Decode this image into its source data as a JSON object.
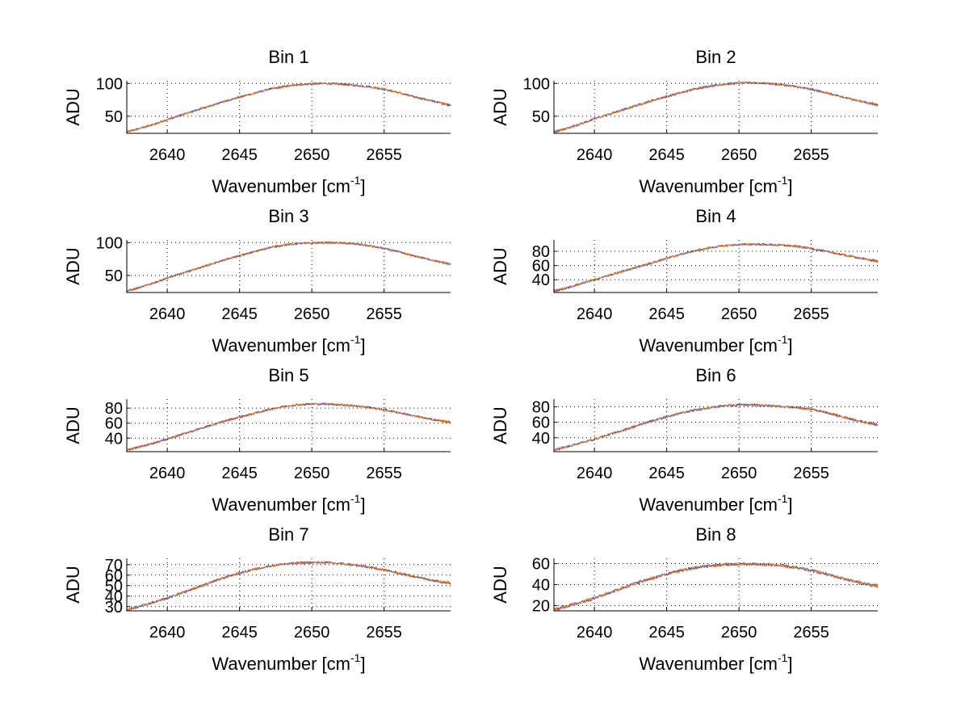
{
  "chart_data": [
    {
      "type": "line",
      "title": "Bin 1",
      "xlabel": "Wavenumber",
      "xlabel_unit_base": "cm",
      "xlabel_unit_exp": "-1",
      "ylabel": "ADU",
      "xlim": [
        2637.2,
        2659.6
      ],
      "ylim": [
        24,
        104
      ],
      "xticks": [
        2640,
        2645,
        2650,
        2655
      ],
      "yticks": [
        50,
        100
      ],
      "series": [
        {
          "name": "blue",
          "color": "#2040c0",
          "noise": 1.4,
          "x": [
            2637.2,
            2638,
            2639,
            2640,
            2641,
            2642,
            2643,
            2644,
            2645,
            2646,
            2647,
            2648,
            2649,
            2650,
            2651,
            2652,
            2653,
            2654,
            2655,
            2656,
            2657,
            2658,
            2659,
            2659.6
          ],
          "values": [
            26,
            31,
            37,
            45,
            52,
            59,
            66,
            73,
            79,
            85,
            91,
            95,
            98,
            99.5,
            100,
            99,
            97,
            95,
            91,
            86,
            80,
            75,
            70,
            67
          ]
        },
        {
          "name": "orange",
          "color": "#e07020",
          "noise": 1.4,
          "x": [
            2637.2,
            2638,
            2639,
            2640,
            2641,
            2642,
            2643,
            2644,
            2645,
            2646,
            2647,
            2648,
            2649,
            2650,
            2651,
            2652,
            2653,
            2654,
            2655,
            2656,
            2657,
            2658,
            2659,
            2659.6
          ],
          "values": [
            26,
            31,
            37,
            45,
            52,
            59,
            66,
            73,
            79,
            85,
            91,
            95,
            98,
            99.5,
            100,
            99,
            97,
            95,
            91,
            86,
            80,
            75,
            70,
            67
          ]
        }
      ]
    },
    {
      "type": "line",
      "title": "Bin 2",
      "xlabel": "Wavenumber",
      "xlabel_unit_base": "cm",
      "xlabel_unit_exp": "-1",
      "ylabel": "ADU",
      "xlim": [
        2637.2,
        2659.6
      ],
      "ylim": [
        24,
        104
      ],
      "xticks": [
        2640,
        2645,
        2650,
        2655
      ],
      "yticks": [
        50,
        100
      ],
      "series": [
        {
          "name": "blue",
          "color": "#2040c0",
          "noise": 1.5,
          "x": [
            2637.2,
            2638,
            2639,
            2640,
            2641,
            2642,
            2643,
            2644,
            2645,
            2646,
            2647,
            2648,
            2649,
            2650,
            2651,
            2652,
            2653,
            2654,
            2655,
            2656,
            2657,
            2658,
            2659,
            2659.6
          ],
          "values": [
            26,
            31,
            38,
            46,
            53,
            60,
            67,
            74,
            80,
            86,
            92,
            96,
            99,
            100.5,
            101,
            100,
            98,
            95,
            91,
            86,
            80,
            75,
            70,
            67
          ]
        },
        {
          "name": "orange",
          "color": "#e07020",
          "noise": 1.5,
          "x": [
            2637.2,
            2638,
            2639,
            2640,
            2641,
            2642,
            2643,
            2644,
            2645,
            2646,
            2647,
            2648,
            2649,
            2650,
            2651,
            2652,
            2653,
            2654,
            2655,
            2656,
            2657,
            2658,
            2659,
            2659.6
          ],
          "values": [
            26,
            31,
            38,
            46,
            53,
            60,
            67,
            74,
            80,
            86,
            92,
            96,
            99,
            100.5,
            101,
            100,
            98,
            95,
            91,
            86,
            80,
            75,
            70,
            67
          ]
        }
      ]
    },
    {
      "type": "line",
      "title": "Bin 3",
      "xlabel": "Wavenumber",
      "xlabel_unit_base": "cm",
      "xlabel_unit_exp": "-1",
      "ylabel": "ADU",
      "xlim": [
        2637.2,
        2659.6
      ],
      "ylim": [
        24,
        104
      ],
      "xticks": [
        2640,
        2645,
        2650,
        2655
      ],
      "yticks": [
        50,
        100
      ],
      "series": [
        {
          "name": "blue",
          "color": "#2040c0",
          "noise": 1.3,
          "x": [
            2637.2,
            2638,
            2639,
            2640,
            2641,
            2642,
            2643,
            2644,
            2645,
            2646,
            2647,
            2648,
            2649,
            2650,
            2651,
            2652,
            2653,
            2654,
            2655,
            2656,
            2657,
            2658,
            2659,
            2659.6
          ],
          "values": [
            26,
            31,
            38,
            46,
            53,
            60,
            67,
            74,
            80,
            86,
            92,
            96,
            98.5,
            99.5,
            100,
            99.5,
            98,
            95,
            91,
            86,
            80,
            75,
            70,
            67
          ]
        },
        {
          "name": "orange",
          "color": "#e07020",
          "noise": 1.3,
          "x": [
            2637.2,
            2638,
            2639,
            2640,
            2641,
            2642,
            2643,
            2644,
            2645,
            2646,
            2647,
            2648,
            2649,
            2650,
            2651,
            2652,
            2653,
            2654,
            2655,
            2656,
            2657,
            2658,
            2659,
            2659.6
          ],
          "values": [
            26,
            31,
            38,
            46,
            53,
            60,
            67,
            74,
            80,
            86,
            92,
            96,
            98.5,
            99.5,
            100,
            99.5,
            98,
            95,
            91,
            86,
            80,
            75,
            70,
            67
          ]
        }
      ]
    },
    {
      "type": "line",
      "title": "Bin 4",
      "xlabel": "Wavenumber",
      "xlabel_unit_base": "cm",
      "xlabel_unit_exp": "-1",
      "ylabel": "ADU",
      "xlim": [
        2637.2,
        2659.6
      ],
      "ylim": [
        22,
        96
      ],
      "xticks": [
        2640,
        2645,
        2650,
        2655
      ],
      "yticks": [
        40,
        60,
        80
      ],
      "series": [
        {
          "name": "blue",
          "color": "#2040c0",
          "noise": 1.3,
          "x": [
            2637.2,
            2638,
            2639,
            2640,
            2641,
            2642,
            2643,
            2644,
            2645,
            2646,
            2647,
            2648,
            2649,
            2650,
            2651,
            2652,
            2653,
            2654,
            2655,
            2656,
            2657,
            2658,
            2659,
            2659.6
          ],
          "values": [
            24,
            28,
            34,
            40,
            46,
            52,
            58,
            64,
            70,
            76,
            81,
            85,
            88,
            89.5,
            90,
            89.5,
            88.5,
            87,
            84,
            80,
            76,
            72,
            68,
            66
          ]
        },
        {
          "name": "orange",
          "color": "#e07020",
          "noise": 1.3,
          "x": [
            2637.2,
            2638,
            2639,
            2640,
            2641,
            2642,
            2643,
            2644,
            2645,
            2646,
            2647,
            2648,
            2649,
            2650,
            2651,
            2652,
            2653,
            2654,
            2655,
            2656,
            2657,
            2658,
            2659,
            2659.6
          ],
          "values": [
            24,
            28,
            34,
            40,
            46,
            52,
            58,
            64,
            70,
            76,
            81,
            85,
            88,
            89.5,
            90,
            89.5,
            88.5,
            87,
            84,
            80,
            76,
            72,
            68,
            66
          ]
        }
      ]
    },
    {
      "type": "line",
      "title": "Bin 5",
      "xlabel": "Wavenumber",
      "xlabel_unit_base": "cm",
      "xlabel_unit_exp": "-1",
      "ylabel": "ADU",
      "xlim": [
        2637.2,
        2659.6
      ],
      "ylim": [
        22,
        92
      ],
      "xticks": [
        2640,
        2645,
        2650,
        2655
      ],
      "yticks": [
        40,
        60,
        80
      ],
      "series": [
        {
          "name": "blue",
          "color": "#2040c0",
          "noise": 1.2,
          "x": [
            2637.2,
            2638,
            2639,
            2640,
            2641,
            2642,
            2643,
            2644,
            2645,
            2646,
            2647,
            2648,
            2649,
            2650,
            2651,
            2652,
            2653,
            2654,
            2655,
            2656,
            2657,
            2658,
            2659,
            2659.6
          ],
          "values": [
            24,
            28,
            33,
            39,
            45,
            51,
            57,
            63,
            68,
            73,
            78,
            82,
            84.5,
            85.5,
            85.5,
            84.5,
            83,
            81,
            78,
            74,
            70,
            66,
            63,
            61
          ]
        },
        {
          "name": "orange",
          "color": "#e07020",
          "noise": 1.2,
          "x": [
            2637.2,
            2638,
            2639,
            2640,
            2641,
            2642,
            2643,
            2644,
            2645,
            2646,
            2647,
            2648,
            2649,
            2650,
            2651,
            2652,
            2653,
            2654,
            2655,
            2656,
            2657,
            2658,
            2659,
            2659.6
          ],
          "values": [
            24,
            28,
            33,
            39,
            45,
            51,
            57,
            63,
            68,
            73,
            78,
            82,
            84.5,
            85.5,
            85.5,
            84.5,
            83,
            81,
            78,
            74,
            70,
            66,
            63,
            61
          ]
        }
      ]
    },
    {
      "type": "line",
      "title": "Bin 6",
      "xlabel": "Wavenumber",
      "xlabel_unit_base": "cm",
      "xlabel_unit_exp": "-1",
      "ylabel": "ADU",
      "xlim": [
        2637.2,
        2659.6
      ],
      "ylim": [
        22,
        90
      ],
      "xticks": [
        2640,
        2645,
        2650,
        2655
      ],
      "yticks": [
        40,
        60,
        80
      ],
      "series": [
        {
          "name": "blue",
          "color": "#2040c0",
          "noise": 1.3,
          "x": [
            2637.2,
            2638,
            2639,
            2640,
            2641,
            2642,
            2643,
            2644,
            2645,
            2646,
            2647,
            2648,
            2649,
            2650,
            2651,
            2652,
            2653,
            2654,
            2655,
            2656,
            2657,
            2658,
            2659,
            2659.6
          ],
          "values": [
            24,
            28,
            33,
            38,
            44,
            50,
            56,
            62,
            67,
            72,
            76,
            79,
            81.5,
            82.5,
            82.5,
            81.5,
            80.5,
            79,
            77,
            73,
            68,
            63,
            59,
            57
          ]
        },
        {
          "name": "orange",
          "color": "#e07020",
          "noise": 1.3,
          "x": [
            2637.2,
            2638,
            2639,
            2640,
            2641,
            2642,
            2643,
            2644,
            2645,
            2646,
            2647,
            2648,
            2649,
            2650,
            2651,
            2652,
            2653,
            2654,
            2655,
            2656,
            2657,
            2658,
            2659,
            2659.6
          ],
          "values": [
            24,
            28,
            33,
            38,
            44,
            50,
            56,
            62,
            67,
            72,
            76,
            79,
            81.5,
            82.5,
            82.5,
            81.5,
            80.5,
            79,
            77,
            73,
            68,
            63,
            59,
            57
          ]
        }
      ]
    },
    {
      "type": "line",
      "title": "Bin 7",
      "xlabel": "Wavenumber",
      "xlabel_unit_base": "cm",
      "xlabel_unit_exp": "-1",
      "ylabel": "ADU",
      "xlim": [
        2637.2,
        2659.6
      ],
      "ylim": [
        26,
        76
      ],
      "xticks": [
        2640,
        2645,
        2650,
        2655
      ],
      "yticks": [
        30,
        40,
        50,
        60,
        70
      ],
      "series": [
        {
          "name": "blue",
          "color": "#2040c0",
          "noise": 1.0,
          "x": [
            2637.2,
            2638,
            2639,
            2640,
            2641,
            2642,
            2643,
            2644,
            2645,
            2646,
            2647,
            2648,
            2649,
            2650,
            2651,
            2652,
            2653,
            2654,
            2655,
            2656,
            2657,
            2658,
            2659,
            2659.6
          ],
          "values": [
            27,
            30,
            34,
            38,
            43,
            48,
            53,
            58,
            62,
            65.5,
            68.5,
            70.5,
            71.5,
            72,
            72,
            71,
            69.5,
            67.5,
            65,
            62,
            59,
            56,
            53.5,
            52.5
          ]
        },
        {
          "name": "orange",
          "color": "#e07020",
          "noise": 1.0,
          "x": [
            2637.2,
            2638,
            2639,
            2640,
            2641,
            2642,
            2643,
            2644,
            2645,
            2646,
            2647,
            2648,
            2649,
            2650,
            2651,
            2652,
            2653,
            2654,
            2655,
            2656,
            2657,
            2658,
            2659,
            2659.6
          ],
          "values": [
            27,
            30,
            34,
            38,
            43,
            48,
            53,
            58,
            62,
            65.5,
            68.5,
            70.5,
            71.5,
            72,
            72,
            71,
            69.5,
            67.5,
            65,
            62,
            59,
            56,
            53.5,
            52.5
          ]
        }
      ]
    },
    {
      "type": "line",
      "title": "Bin 8",
      "xlabel": "Wavenumber",
      "xlabel_unit_base": "cm",
      "xlabel_unit_exp": "-1",
      "ylabel": "ADU",
      "xlim": [
        2637.2,
        2659.6
      ],
      "ylim": [
        15,
        65
      ],
      "xticks": [
        2640,
        2645,
        2650,
        2655
      ],
      "yticks": [
        20,
        40,
        60
      ],
      "series": [
        {
          "name": "blue",
          "color": "#2040c0",
          "noise": 1.3,
          "x": [
            2637.2,
            2638,
            2639,
            2640,
            2641,
            2642,
            2643,
            2644,
            2645,
            2646,
            2647,
            2648,
            2649,
            2650,
            2651,
            2652,
            2653,
            2654,
            2655,
            2656,
            2657,
            2658,
            2659,
            2659.6
          ],
          "values": [
            16,
            19,
            23,
            27,
            32,
            37,
            42,
            46,
            50,
            53.5,
            56,
            58,
            59,
            59.5,
            59.5,
            59,
            58,
            56,
            53.5,
            50,
            46.5,
            43,
            40,
            38.5
          ]
        },
        {
          "name": "orange",
          "color": "#e07020",
          "noise": 1.3,
          "x": [
            2637.2,
            2638,
            2639,
            2640,
            2641,
            2642,
            2643,
            2644,
            2645,
            2646,
            2647,
            2648,
            2649,
            2650,
            2651,
            2652,
            2653,
            2654,
            2655,
            2656,
            2657,
            2658,
            2659,
            2659.6
          ],
          "values": [
            16,
            19,
            23,
            27,
            32,
            37,
            42,
            46,
            50,
            53.5,
            56,
            58,
            59,
            59.5,
            59.5,
            59,
            58,
            56,
            53.5,
            50,
            46.5,
            43,
            40,
            38.5
          ]
        }
      ]
    }
  ]
}
